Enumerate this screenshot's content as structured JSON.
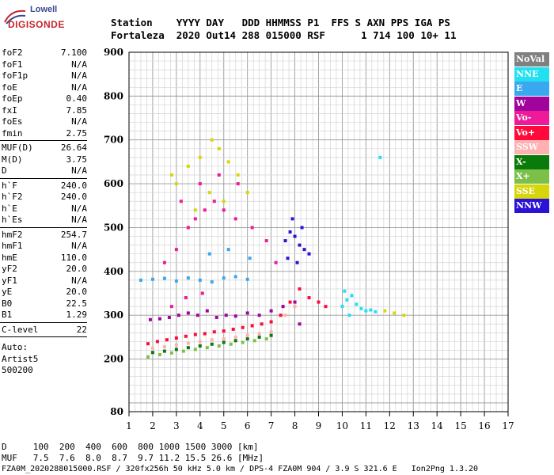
{
  "logo": {
    "top": "Lowell",
    "main": "DIGISONDE"
  },
  "header": {
    "row1": "Station    YYYY DAY   DDD HHMMSS P1  FFS S AXN PPS IGA PS",
    "row2": "Fortaleza  2020 Out14 288 015000 RSF      1 714 100 10+ 11"
  },
  "params": {
    "group1": [
      {
        "label": "foF2",
        "value": "7.100"
      },
      {
        "label": "foF1",
        "value": "N/A"
      },
      {
        "label": "foF1p",
        "value": "N/A"
      },
      {
        "label": "foE",
        "value": "N/A"
      },
      {
        "label": "foEp",
        "value": "0.40"
      },
      {
        "label": "fxI",
        "value": "7.85"
      },
      {
        "label": "foEs",
        "value": "N/A"
      },
      {
        "label": "fmin",
        "value": "2.75"
      }
    ],
    "group2": [
      {
        "label": "MUF(D)",
        "value": "26.64"
      },
      {
        "label": "M(D)",
        "value": "3.75"
      },
      {
        "label": "D",
        "value": "N/A"
      }
    ],
    "group3": [
      {
        "label": "h`F",
        "value": "240.0"
      },
      {
        "label": "h`F2",
        "value": "240.0"
      },
      {
        "label": "h`E",
        "value": "N/A"
      },
      {
        "label": "h`Es",
        "value": "N/A"
      }
    ],
    "group4": [
      {
        "label": "hmF2",
        "value": "254.7"
      },
      {
        "label": "hmF1",
        "value": "N/A"
      },
      {
        "label": "hmE",
        "value": "110.0"
      },
      {
        "label": "yF2",
        "value": "20.0"
      },
      {
        "label": "yF1",
        "value": "N/A"
      },
      {
        "label": "yE",
        "value": "20.0"
      },
      {
        "label": "B0",
        "value": "22.5"
      },
      {
        "label": "B1",
        "value": "1.29"
      }
    ],
    "clevel": {
      "label": "C-level",
      "value": "22"
    },
    "auto": [
      "Auto:",
      "Artist5",
      "500200"
    ]
  },
  "legend": [
    {
      "label": "NoVal",
      "color": "#808080"
    },
    {
      "label": "NNE",
      "color": "#22e0f0"
    },
    {
      "label": "E",
      "color": "#3aa8ee"
    },
    {
      "label": "W",
      "color": "#a0049c"
    },
    {
      "label": "Vo-",
      "color": "#ee1a9a"
    },
    {
      "label": "Vo+",
      "color": "#ff0a3a"
    },
    {
      "label": "SSW",
      "color": "#ffb0b0"
    },
    {
      "label": "X-",
      "color": "#0a7a0a"
    },
    {
      "label": "X+",
      "color": "#7cc04a"
    },
    {
      "label": "SSE",
      "color": "#d6d60a"
    },
    {
      "label": "NNW",
      "color": "#2a12d6"
    }
  ],
  "footer": {
    "row1": "D     100  200  400  600  800 1000 1500 3000 [km]",
    "row2": "MUF   7.5  7.6  8.0  8.7  9.7 11.2 15.5 26.6 [MHz]",
    "row3": "FZA0M_2020288015000.RSF / 320fx256h 50 kHz 5.0 km / DPS-4 FZA0M 904 / 3.9 S 321.6 E   Ion2Png 1.3.20"
  },
  "chart_data": {
    "type": "scatter",
    "title": "",
    "xlabel": "",
    "ylabel": "",
    "xlim": [
      1,
      17
    ],
    "ylim": [
      80,
      900
    ],
    "x_ticks": [
      1,
      2,
      3,
      4,
      5,
      6,
      7,
      8,
      9,
      10,
      11,
      12,
      13,
      14,
      15,
      16,
      17
    ],
    "y_ticks": [
      80,
      200,
      300,
      400,
      500,
      600,
      700,
      800,
      900
    ],
    "grid": true,
    "legend_position": "right",
    "series": [
      {
        "name": "NNE",
        "points": [
          [
            10.0,
            320
          ],
          [
            10.2,
            335
          ],
          [
            10.4,
            345
          ],
          [
            10.6,
            325
          ],
          [
            10.8,
            315
          ],
          [
            11.0,
            310
          ],
          [
            11.2,
            312
          ],
          [
            11.4,
            308
          ],
          [
            10.1,
            355
          ],
          [
            10.3,
            300
          ],
          [
            11.6,
            660
          ]
        ]
      },
      {
        "name": "E",
        "points": [
          [
            1.5,
            380
          ],
          [
            2.0,
            382
          ],
          [
            2.5,
            384
          ],
          [
            3.0,
            378
          ],
          [
            3.5,
            385
          ],
          [
            4.0,
            380
          ],
          [
            4.5,
            376
          ],
          [
            5.0,
            385
          ],
          [
            5.5,
            388
          ],
          [
            6.0,
            382
          ],
          [
            4.4,
            440
          ],
          [
            5.2,
            450
          ],
          [
            6.1,
            430
          ]
        ]
      },
      {
        "name": "W",
        "points": [
          [
            1.9,
            290
          ],
          [
            2.3,
            292
          ],
          [
            2.7,
            295
          ],
          [
            3.1,
            300
          ],
          [
            3.5,
            305
          ],
          [
            3.9,
            300
          ],
          [
            4.3,
            310
          ],
          [
            4.7,
            295
          ],
          [
            5.1,
            300
          ],
          [
            5.5,
            298
          ],
          [
            6.0,
            305
          ],
          [
            6.5,
            300
          ],
          [
            7.0,
            310
          ],
          [
            7.5,
            320
          ],
          [
            8.0,
            330
          ],
          [
            8.2,
            280
          ]
        ]
      },
      {
        "name": "Vo-",
        "points": [
          [
            2.5,
            420
          ],
          [
            3.0,
            450
          ],
          [
            3.5,
            500
          ],
          [
            3.8,
            520
          ],
          [
            4.2,
            540
          ],
          [
            4.6,
            560
          ],
          [
            5.0,
            540
          ],
          [
            5.5,
            520
          ],
          [
            6.2,
            500
          ],
          [
            6.8,
            470
          ],
          [
            3.2,
            560
          ],
          [
            4.0,
            600
          ],
          [
            4.8,
            620
          ],
          [
            5.6,
            600
          ],
          [
            7.2,
            420
          ],
          [
            2.8,
            320
          ],
          [
            3.4,
            340
          ],
          [
            4.1,
            350
          ]
        ]
      },
      {
        "name": "Vo+",
        "points": [
          [
            1.8,
            235
          ],
          [
            2.2,
            240
          ],
          [
            2.6,
            244
          ],
          [
            3.0,
            248
          ],
          [
            3.4,
            252
          ],
          [
            3.8,
            256
          ],
          [
            4.2,
            258
          ],
          [
            4.6,
            262
          ],
          [
            5.0,
            264
          ],
          [
            5.4,
            268
          ],
          [
            5.8,
            272
          ],
          [
            6.2,
            276
          ],
          [
            6.6,
            280
          ],
          [
            7.0,
            285
          ],
          [
            7.4,
            300
          ],
          [
            7.8,
            330
          ],
          [
            8.2,
            360
          ],
          [
            8.6,
            340
          ],
          [
            9.0,
            330
          ],
          [
            9.3,
            320
          ]
        ]
      },
      {
        "name": "SSW",
        "points": [
          [
            2.0,
            225
          ],
          [
            2.5,
            228
          ],
          [
            3.0,
            232
          ],
          [
            3.5,
            236
          ],
          [
            4.0,
            240
          ],
          [
            4.5,
            244
          ],
          [
            5.0,
            246
          ],
          [
            5.5,
            250
          ],
          [
            6.0,
            254
          ],
          [
            6.5,
            258
          ],
          [
            7.0,
            262
          ],
          [
            7.6,
            300
          ],
          [
            8.0,
            320
          ]
        ]
      },
      {
        "name": "X-",
        "points": [
          [
            2.0,
            215
          ],
          [
            2.5,
            218
          ],
          [
            3.0,
            222
          ],
          [
            3.5,
            226
          ],
          [
            4.0,
            230
          ],
          [
            4.5,
            234
          ],
          [
            5.0,
            238
          ],
          [
            5.5,
            242
          ],
          [
            6.0,
            246
          ],
          [
            6.5,
            250
          ],
          [
            7.0,
            254
          ]
        ]
      },
      {
        "name": "X+",
        "points": [
          [
            1.8,
            205
          ],
          [
            2.3,
            210
          ],
          [
            2.8,
            214
          ],
          [
            3.3,
            218
          ],
          [
            3.8,
            222
          ],
          [
            4.3,
            226
          ],
          [
            4.8,
            230
          ],
          [
            5.3,
            234
          ],
          [
            5.8,
            238
          ],
          [
            6.3,
            242
          ],
          [
            6.8,
            246
          ]
        ]
      },
      {
        "name": "SSE",
        "points": [
          [
            3.0,
            600
          ],
          [
            3.5,
            640
          ],
          [
            4.0,
            660
          ],
          [
            4.5,
            700
          ],
          [
            4.8,
            680
          ],
          [
            5.2,
            650
          ],
          [
            5.6,
            620
          ],
          [
            6.0,
            580
          ],
          [
            3.8,
            540
          ],
          [
            4.4,
            580
          ],
          [
            5.0,
            560
          ],
          [
            2.8,
            620
          ],
          [
            11.8,
            310
          ],
          [
            12.2,
            305
          ],
          [
            12.6,
            300
          ]
        ]
      },
      {
        "name": "NNW",
        "points": [
          [
            7.6,
            470
          ],
          [
            7.8,
            490
          ],
          [
            8.0,
            480
          ],
          [
            8.2,
            460
          ],
          [
            8.4,
            450
          ],
          [
            8.6,
            440
          ],
          [
            7.7,
            430
          ],
          [
            8.1,
            420
          ],
          [
            8.3,
            500
          ],
          [
            7.9,
            520
          ]
        ]
      }
    ]
  }
}
